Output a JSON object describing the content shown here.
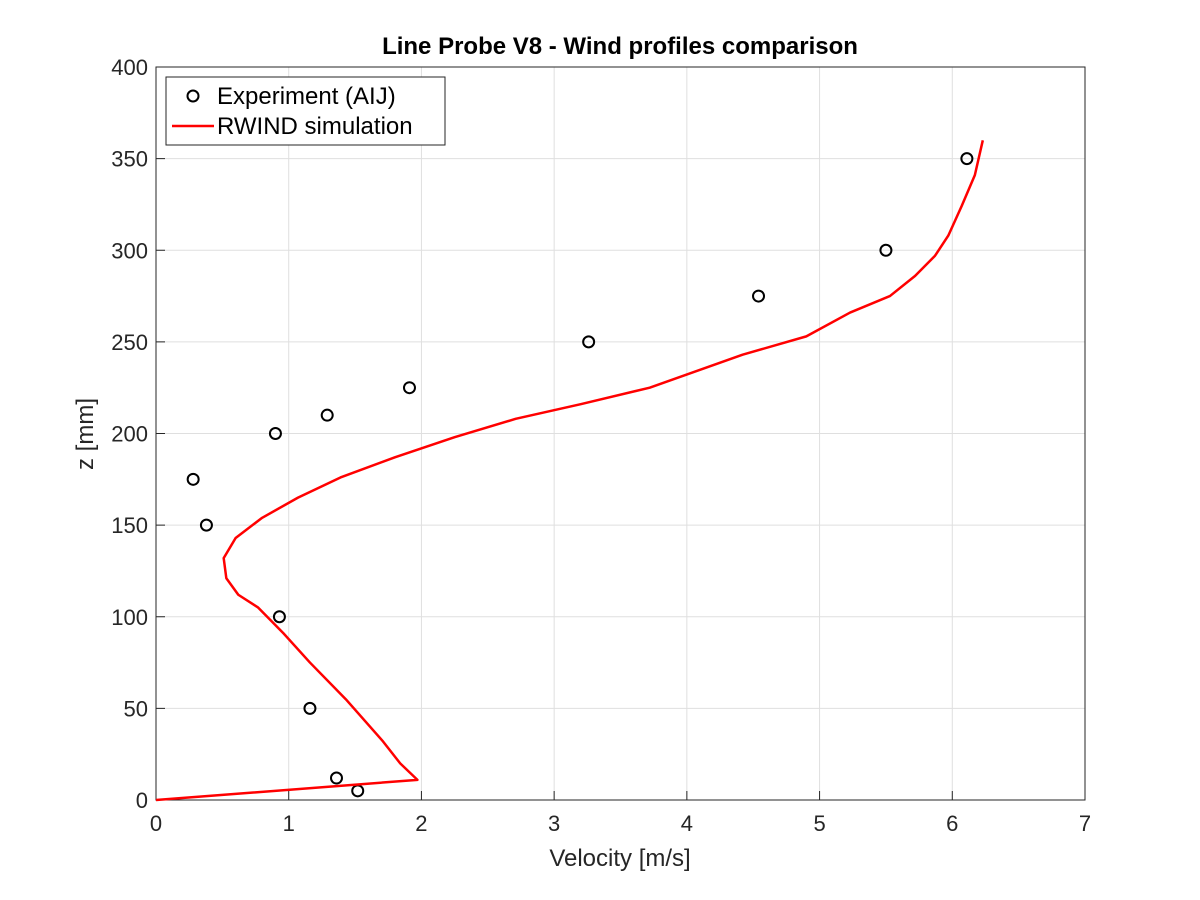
{
  "chart_data": {
    "type": "line",
    "title": "Line Probe V8 - Wind profiles comparison",
    "xlabel": "Velocity [m/s]",
    "ylabel": "z [mm]",
    "xlim": [
      0,
      7
    ],
    "ylim": [
      0,
      400
    ],
    "xticks": [
      "0",
      "1",
      "2",
      "3",
      "4",
      "5",
      "6",
      "7"
    ],
    "yticks": [
      "0",
      "50",
      "100",
      "150",
      "200",
      "250",
      "300",
      "350",
      "400"
    ],
    "grid": true,
    "legend_position": "top-left",
    "series": [
      {
        "name": "Experiment (AIJ)",
        "kind": "scatter",
        "marker": "circle-open",
        "color": "#000000",
        "x": [
          1.52,
          1.36,
          1.16,
          0.93,
          0.38,
          0.28,
          0.9,
          1.29,
          1.91,
          3.26,
          4.54,
          5.5,
          6.11
        ],
        "y": [
          5,
          12,
          50,
          100,
          150,
          175,
          200,
          210,
          225,
          250,
          275,
          300,
          350
        ]
      },
      {
        "name": "RWIND simulation",
        "kind": "line",
        "color": "#ff0000",
        "x": [
          0,
          1.97,
          1.84,
          1.71,
          1.43,
          1.16,
          0.96,
          0.77,
          0.62,
          0.53,
          0.51,
          0.6,
          0.8,
          1.07,
          1.39,
          1.8,
          2.25,
          2.71,
          3.2,
          3.72,
          4.42,
          4.9,
          5.23,
          5.53,
          5.72,
          5.87,
          5.97,
          6.07,
          6.17,
          6.23
        ],
        "y": [
          0,
          11,
          20,
          32,
          55,
          75,
          91,
          105,
          112,
          121,
          132,
          143,
          154,
          165,
          176,
          187,
          198,
          208,
          216,
          225,
          243,
          253,
          266,
          275,
          286,
          297,
          308,
          324,
          341,
          360
        ]
      }
    ]
  }
}
